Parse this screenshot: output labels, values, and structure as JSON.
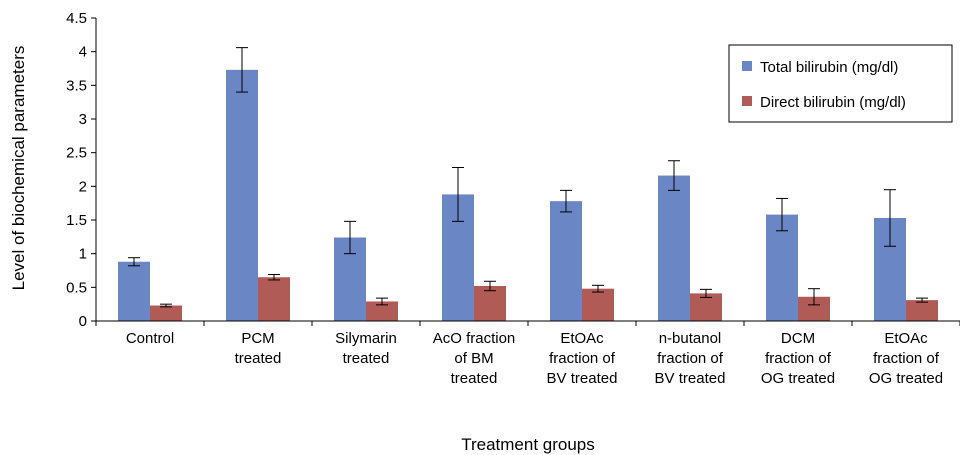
{
  "chart_data": {
    "type": "bar",
    "title": "",
    "xlabel": "Treatment groups",
    "ylabel": "Level of biochemical parameters",
    "ylim": [
      0,
      4.5
    ],
    "yticks": [
      "0",
      "0.5",
      "1",
      "1.5",
      "2",
      "2.5",
      "3",
      "3.5",
      "4",
      "4.5"
    ],
    "grid": false,
    "legend": "top-right",
    "categories": [
      [
        "Control"
      ],
      [
        "PCM",
        "treated"
      ],
      [
        "Silymarin",
        "treated"
      ],
      [
        "AcO fraction",
        "of BM",
        "treated"
      ],
      [
        "EtOAc",
        "fraction of",
        "BV treated"
      ],
      [
        "n-butanol",
        "fraction of",
        "BV treated"
      ],
      [
        "DCM",
        "fraction of",
        "OG treated"
      ],
      [
        "EtOAc",
        "fraction of",
        "OG treated"
      ]
    ],
    "series": [
      {
        "name": "Total bilirubin (mg/dl)",
        "color": "#6b86c4",
        "values": [
          0.88,
          3.73,
          1.24,
          1.88,
          1.78,
          2.16,
          1.58,
          1.53
        ],
        "errors": [
          0.06,
          0.33,
          0.24,
          0.4,
          0.16,
          0.22,
          0.24,
          0.42
        ]
      },
      {
        "name": "Direct bilirubin (mg/dl)",
        "color": "#b05b55",
        "values": [
          0.23,
          0.65,
          0.29,
          0.52,
          0.48,
          0.41,
          0.36,
          0.31
        ],
        "errors": [
          0.02,
          0.04,
          0.05,
          0.07,
          0.05,
          0.06,
          0.12,
          0.03
        ]
      }
    ]
  }
}
